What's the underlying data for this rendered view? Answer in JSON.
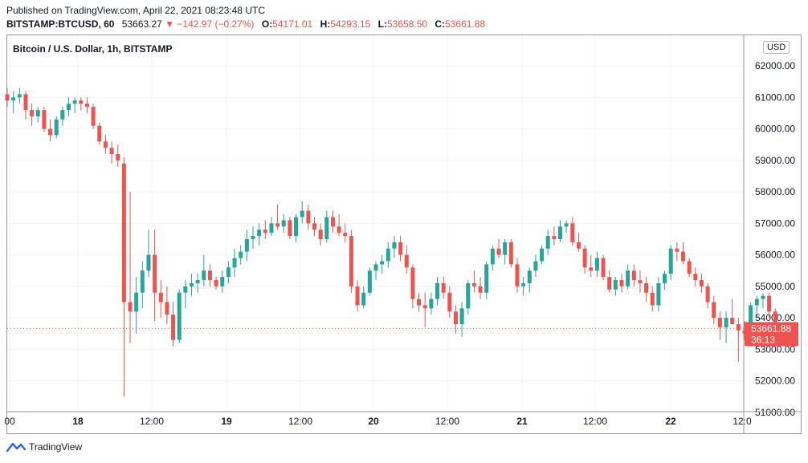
{
  "header": {
    "published": "Published on TradingView.com, April 22, 2021 08:23:48 UTC",
    "symbol": "BITSTAMP:BTCUSD, 60",
    "last": "53663.27",
    "change": "▼ −142.97 (−0.27%)",
    "o_label": "O:",
    "o_value": "54171.01",
    "h_label": "H:",
    "h_value": "54293.15",
    "l_label": "L:",
    "l_value": "53658.50",
    "c_label": "C:",
    "c_value": "53661.88"
  },
  "footer": {
    "brand": "TradingView"
  },
  "colors": {
    "up": "#26a69a",
    "down": "#ef5350",
    "grid": "#f0f3fa"
  },
  "chart_data": {
    "type": "candlestick",
    "title": "Bitcoin / U.S. Dollar, 1h, BITSTAMP",
    "currency": "USD",
    "yticks": [
      "62000.00",
      "61000.00",
      "60000.00",
      "59000.00",
      "58000.00",
      "57000.00",
      "56000.00",
      "55000.00",
      "54000.00",
      "53000.00",
      "52000.00",
      "51000.00"
    ],
    "ylim": [
      50500,
      62500
    ],
    "xticks": [
      "00",
      "18",
      "12:00",
      "19",
      "12:00",
      "20",
      "12:00",
      "21",
      "12:00",
      "22",
      "12:0"
    ],
    "xtick_bold": [
      false,
      true,
      false,
      true,
      false,
      true,
      false,
      true,
      false,
      true,
      false
    ],
    "last_price_label": "53661.88",
    "countdown": "36:13",
    "last_price": 53661.88,
    "candles": [
      [
        61100,
        61300,
        60700,
        60900
      ],
      [
        60900,
        61200,
        60500,
        61000
      ],
      [
        61000,
        61300,
        60800,
        61100
      ],
      [
        61100,
        61200,
        60300,
        60600
      ],
      [
        60600,
        60800,
        60100,
        60400
      ],
      [
        60400,
        60700,
        60200,
        60600
      ],
      [
        60600,
        60700,
        59900,
        60000
      ],
      [
        60000,
        60300,
        59600,
        59800
      ],
      [
        59800,
        60400,
        59700,
        60300
      ],
      [
        60300,
        60700,
        60100,
        60600
      ],
      [
        60600,
        61000,
        60400,
        60800
      ],
      [
        60800,
        61000,
        60500,
        60900
      ],
      [
        60900,
        61000,
        60600,
        60800
      ],
      [
        60800,
        61000,
        60500,
        60700
      ],
      [
        60700,
        60800,
        60000,
        60100
      ],
      [
        60100,
        60200,
        59500,
        59600
      ],
      [
        59600,
        59800,
        59200,
        59400
      ],
      [
        59400,
        59600,
        58900,
        59200
      ],
      [
        59200,
        59500,
        58800,
        59000
      ],
      [
        58900,
        59100,
        51500,
        54500
      ],
      [
        54500,
        58000,
        53200,
        54200
      ],
      [
        54200,
        55300,
        53500,
        54800
      ],
      [
        54800,
        55800,
        54300,
        55500
      ],
      [
        55500,
        56800,
        55300,
        56000
      ],
      [
        56000,
        56800,
        53900,
        54800
      ],
      [
        54800,
        55200,
        54000,
        54500
      ],
      [
        54500,
        55000,
        53800,
        54100
      ],
      [
        54100,
        54500,
        53100,
        53300
      ],
      [
        53300,
        54900,
        53200,
        54800
      ],
      [
        54800,
        55200,
        54300,
        55000
      ],
      [
        55000,
        55400,
        54700,
        55100
      ],
      [
        55100,
        55400,
        54800,
        55200
      ],
      [
        55200,
        56000,
        55000,
        55500
      ],
      [
        55500,
        55700,
        55000,
        55200
      ],
      [
        55200,
        55300,
        54900,
        55000
      ],
      [
        55000,
        55500,
        54800,
        55300
      ],
      [
        55300,
        55800,
        55100,
        55600
      ],
      [
        55600,
        56200,
        55300,
        55900
      ],
      [
        55900,
        56300,
        55700,
        56100
      ],
      [
        56100,
        56800,
        55800,
        56500
      ],
      [
        56500,
        56900,
        56200,
        56600
      ],
      [
        56600,
        57000,
        56300,
        56800
      ],
      [
        56800,
        57100,
        56500,
        56700
      ],
      [
        56700,
        57200,
        56600,
        57000
      ],
      [
        57000,
        57600,
        56800,
        56900
      ],
      [
        56900,
        57300,
        56700,
        57100
      ],
      [
        57100,
        57200,
        56500,
        56600
      ],
      [
        56600,
        57300,
        56400,
        57200
      ],
      [
        57200,
        57700,
        57000,
        57400
      ],
      [
        57400,
        57600,
        56800,
        57000
      ],
      [
        57000,
        57200,
        56600,
        56800
      ],
      [
        56800,
        57000,
        56300,
        56500
      ],
      [
        56500,
        57400,
        56400,
        57200
      ],
      [
        57200,
        57400,
        56700,
        56900
      ],
      [
        56900,
        57300,
        56600,
        56700
      ],
      [
        56700,
        57000,
        56400,
        56600
      ],
      [
        56600,
        56800,
        54800,
        55000
      ],
      [
        55000,
        55200,
        54200,
        54400
      ],
      [
        54400,
        55000,
        54300,
        54800
      ],
      [
        54800,
        55600,
        54700,
        55500
      ],
      [
        55500,
        55800,
        55200,
        55700
      ],
      [
        55700,
        56000,
        55400,
        55800
      ],
      [
        55800,
        56400,
        55600,
        56200
      ],
      [
        56200,
        56600,
        55900,
        56400
      ],
      [
        56400,
        56600,
        55800,
        56000
      ],
      [
        56000,
        56300,
        55400,
        55600
      ],
      [
        55600,
        55700,
        54300,
        54600
      ],
      [
        54600,
        54800,
        54200,
        54400
      ],
      [
        54400,
        54800,
        53700,
        54300
      ],
      [
        54300,
        54800,
        54100,
        54600
      ],
      [
        54600,
        55300,
        54400,
        55100
      ],
      [
        55100,
        55300,
        54600,
        54800
      ],
      [
        54800,
        55000,
        54000,
        54200
      ],
      [
        54200,
        54400,
        53500,
        53800
      ],
      [
        53800,
        54500,
        53400,
        54300
      ],
      [
        54300,
        55200,
        54100,
        55100
      ],
      [
        55100,
        55500,
        54800,
        55000
      ],
      [
        55000,
        55300,
        54600,
        54800
      ],
      [
        54800,
        55800,
        54600,
        55700
      ],
      [
        55700,
        56300,
        55500,
        56200
      ],
      [
        56200,
        56500,
        55900,
        56000
      ],
      [
        56000,
        56500,
        55700,
        56400
      ],
      [
        56400,
        56500,
        55600,
        55700
      ],
      [
        55700,
        55900,
        54800,
        55000
      ],
      [
        55000,
        55300,
        54700,
        55100
      ],
      [
        55100,
        55600,
        54800,
        55500
      ],
      [
        55500,
        56000,
        55300,
        55800
      ],
      [
        55800,
        56300,
        55700,
        56200
      ],
      [
        56200,
        56800,
        56000,
        56600
      ],
      [
        56600,
        56900,
        56300,
        56500
      ],
      [
        56500,
        57100,
        56400,
        56900
      ],
      [
        56900,
        57100,
        56700,
        57000
      ],
      [
        57000,
        57200,
        56300,
        56400
      ],
      [
        56400,
        56700,
        56100,
        56200
      ],
      [
        56200,
        56300,
        55400,
        55600
      ],
      [
        55600,
        56000,
        55300,
        55500
      ],
      [
        55500,
        56100,
        55300,
        55900
      ],
      [
        55900,
        56000,
        55200,
        55300
      ],
      [
        55300,
        55500,
        54800,
        54900
      ],
      [
        54900,
        55300,
        54700,
        55200
      ],
      [
        55200,
        55400,
        54800,
        55000
      ],
      [
        55000,
        55700,
        54900,
        55500
      ],
      [
        55500,
        55700,
        55000,
        55200
      ],
      [
        55200,
        55500,
        54800,
        55100
      ],
      [
        55100,
        55300,
        54500,
        54800
      ],
      [
        54800,
        55000,
        54200,
        54400
      ],
      [
        54400,
        55300,
        54200,
        55100
      ],
      [
        55100,
        55500,
        54900,
        55400
      ],
      [
        55400,
        56300,
        55200,
        56200
      ],
      [
        56200,
        56400,
        55800,
        56100
      ],
      [
        56100,
        56400,
        55700,
        55800
      ],
      [
        55800,
        55900,
        55300,
        55400
      ],
      [
        55400,
        55600,
        55000,
        55200
      ],
      [
        55200,
        55400,
        54800,
        55000
      ],
      [
        55000,
        55100,
        54300,
        54500
      ],
      [
        54500,
        54700,
        53800,
        54000
      ],
      [
        54000,
        54200,
        53300,
        53700
      ],
      [
        53700,
        54200,
        53200,
        54000
      ],
      [
        54000,
        54600,
        53800,
        53800
      ],
      [
        53800,
        54000,
        52600,
        53600
      ],
      [
        53600,
        53900,
        53300,
        53500
      ],
      [
        53500,
        54500,
        53400,
        54400
      ],
      [
        54400,
        54700,
        54000,
        54600
      ],
      [
        54600,
        54800,
        54300,
        54700
      ],
      [
        54700,
        54800,
        54000,
        54200
      ],
      [
        54200,
        54300,
        53600,
        53662
      ]
    ]
  }
}
